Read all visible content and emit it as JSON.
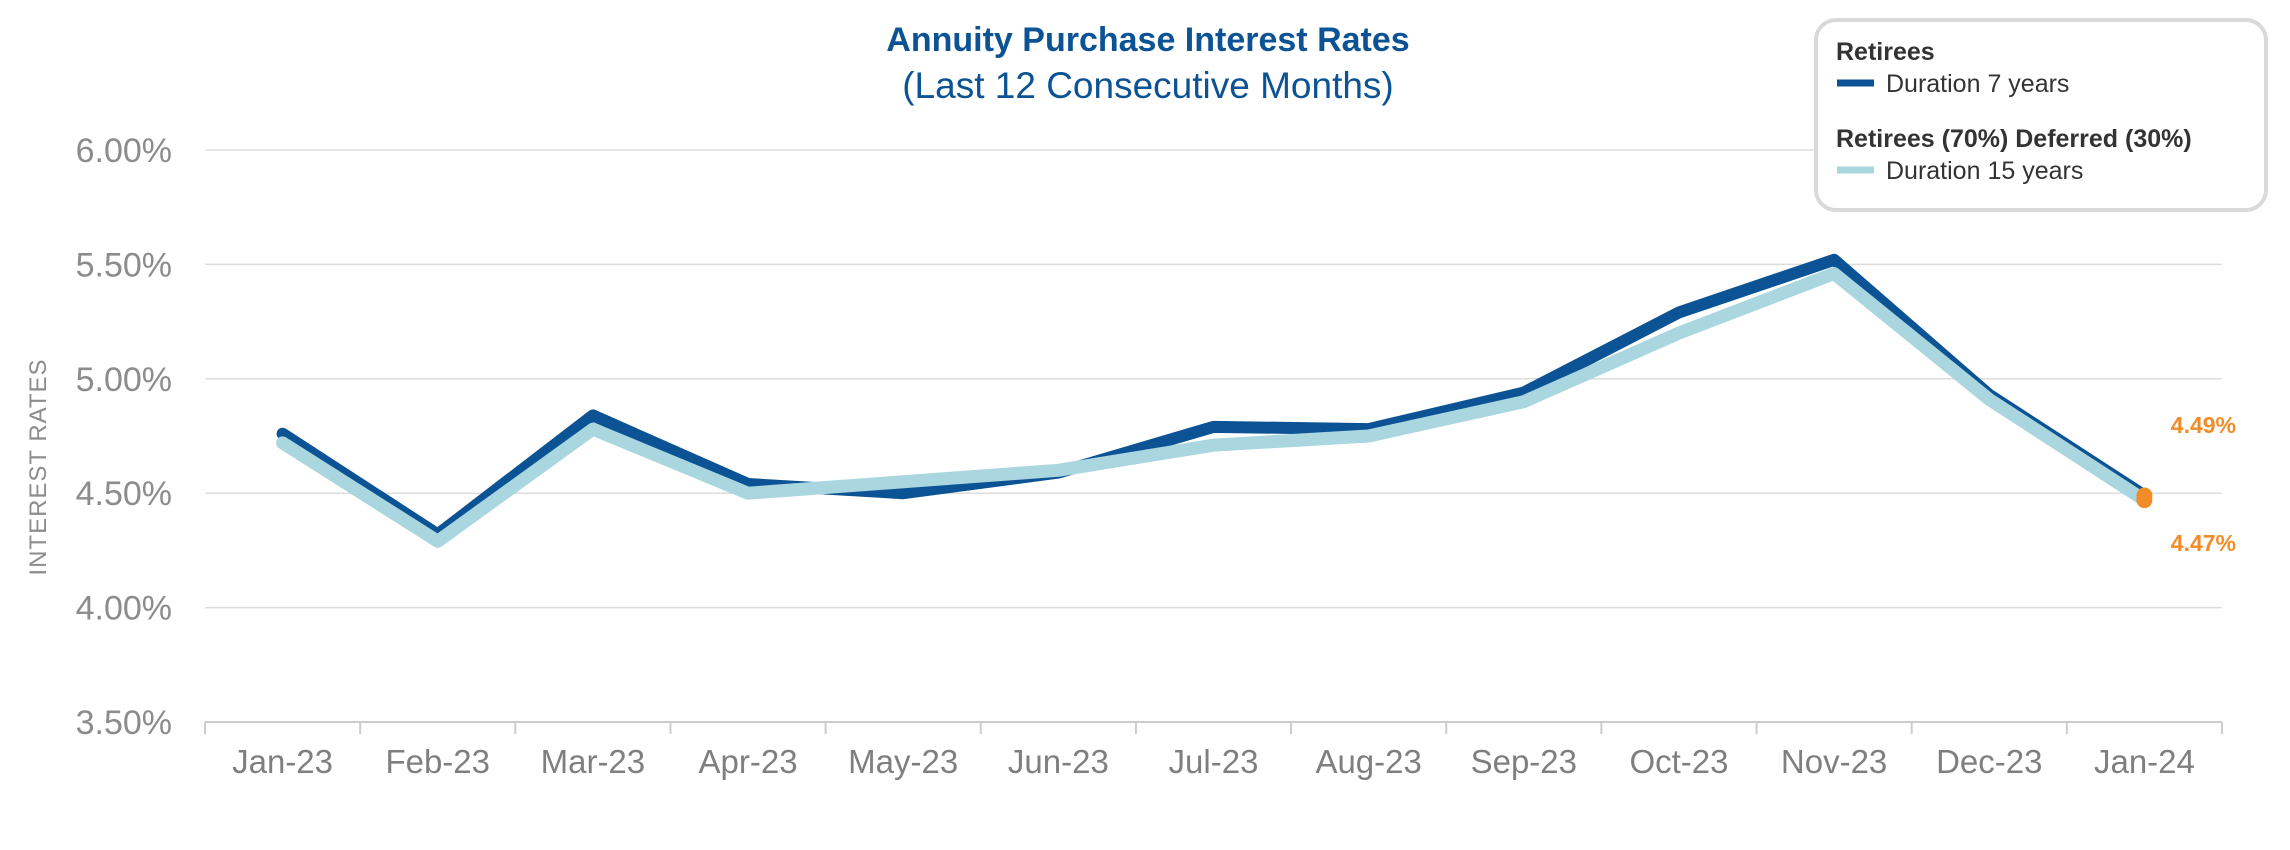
{
  "chart_data": {
    "type": "line",
    "title": "Annuity Purchase Interest Rates",
    "subtitle": "(Last 12 Consecutive Months)",
    "xlabel": "",
    "ylabel": "INTEREST RATES",
    "ylim": [
      3.5,
      6.0
    ],
    "y_ticks": [
      "6.00%",
      "5.50%",
      "5.00%",
      "4.50%",
      "4.00%",
      "3.50%"
    ],
    "y_tick_values": [
      6.0,
      5.5,
      5.0,
      4.5,
      4.0,
      3.5
    ],
    "categories": [
      "Jan-23",
      "Feb-23",
      "Mar-23",
      "Apr-23",
      "May-23",
      "Jun-23",
      "Jul-23",
      "Aug-23",
      "Sep-23",
      "Oct-23",
      "Nov-23",
      "Dec-23",
      "Jan-24"
    ],
    "grid": true,
    "legend_position": "top-right",
    "series": [
      {
        "name": "Retirees",
        "legend_group": "Retirees",
        "legend_label": "Duration 7 years",
        "color": "#0b5394",
        "values": [
          4.76,
          4.32,
          4.84,
          4.54,
          4.5,
          4.59,
          4.79,
          4.78,
          4.94,
          5.29,
          5.52,
          4.93,
          4.49
        ],
        "end_label": "4.49%"
      },
      {
        "name": "Retirees (70%) Deferred (30%)",
        "legend_group": "Retirees (70%) Deferred (30%)",
        "legend_label": "Duration 15 years",
        "color": "#a9d6df",
        "values": [
          4.72,
          4.29,
          4.78,
          4.5,
          4.55,
          4.6,
          4.71,
          4.75,
          4.9,
          5.2,
          5.46,
          4.91,
          4.47
        ],
        "end_label": "4.47%"
      }
    ],
    "marker_color": "#f28c28"
  }
}
